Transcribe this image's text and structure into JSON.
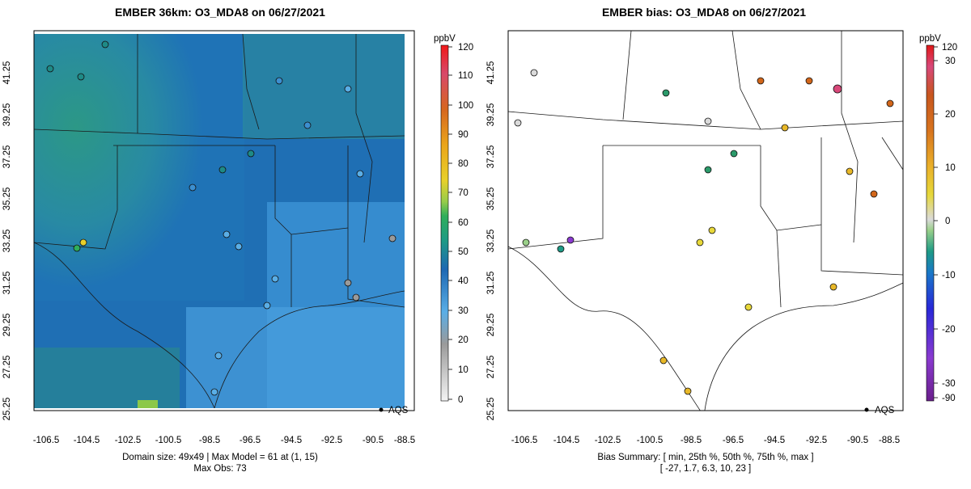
{
  "left_panel": {
    "title": "EMBER 36km: O3_MDA8 on 06/27/2021",
    "legend_label": "AQS",
    "summary_line1": "Domain size: 49x49 | Max Model = 61 at (1, 15)",
    "summary_line2": "Max Obs: 73",
    "colorbar": {
      "unit": "ppbV",
      "ticks": [
        "0",
        "10",
        "20",
        "30",
        "40",
        "50",
        "60",
        "70",
        "80",
        "90",
        "100",
        "110",
        "120"
      ]
    }
  },
  "right_panel": {
    "title": "EMBER bias: O3_MDA8 on 06/27/2021",
    "legend_label": "AQS",
    "summary_line1": "Bias Summary: [ min, 25th %, 50th %, 75th %, max ]",
    "summary_line2": "[ -27,   1.7,   6.3,   10,   23 ]",
    "colorbar": {
      "unit": "ppbV",
      "ticks": [
        "-90",
        "-30",
        "-20",
        "-10",
        "0",
        "10",
        "20",
        "30",
        "120"
      ]
    }
  },
  "axes": {
    "lon_ticks": [
      "-106.5",
      "-104.5",
      "-102.5",
      "-100.5",
      "-98.5",
      "-96.5",
      "-94.5",
      "-92.5",
      "-90.5",
      "-88.5"
    ],
    "lat_ticks": [
      "25.25",
      "27.25",
      "29.25",
      "31.25",
      "33.25",
      "35.25",
      "37.25",
      "39.25",
      "41.25"
    ]
  },
  "colors": {
    "model_bg_dark": "#1f6fb4",
    "model_bg_mid": "#3c8fd0",
    "model_bg_green": "#2aa37a",
    "bias_neutral": "#d7d7d7",
    "bias_positive": "#e8b828",
    "bias_high": "#d2661a",
    "bias_negative": "#2b9a6a"
  },
  "bias_summary": {
    "min": -27,
    "p25": 1.7,
    "p50": 6.3,
    "p75": 10,
    "max": 23
  },
  "model_max": {
    "value": 61,
    "cell": [
      1,
      15
    ]
  },
  "obs_max": 73
}
